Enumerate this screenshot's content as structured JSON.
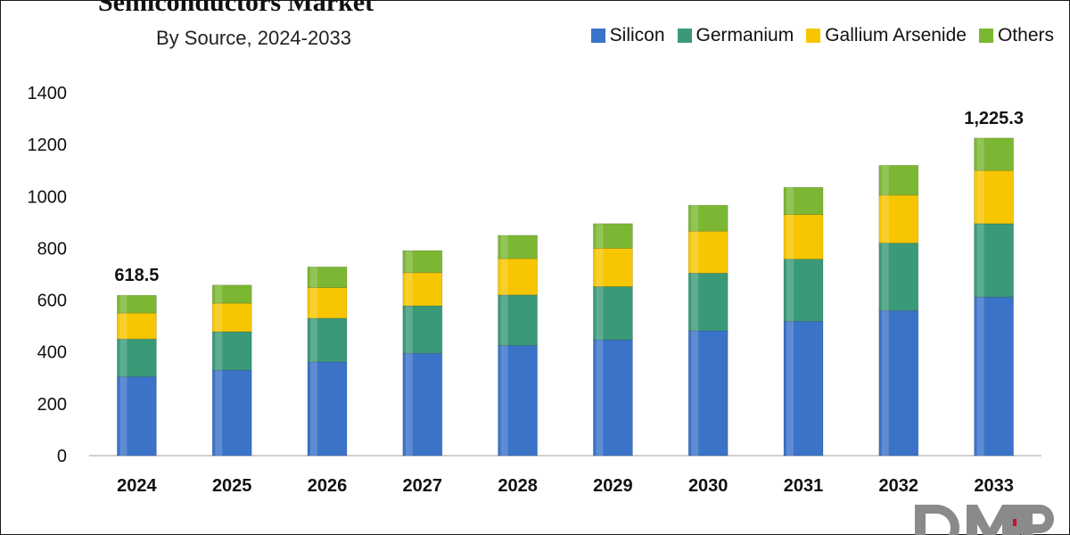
{
  "chart_data": {
    "type": "bar",
    "stacked": true,
    "title": "Semiconductors Market",
    "subtitle": "By Source, 2024-2033",
    "xlabel": "",
    "ylabel": "",
    "ylim": [
      0,
      1400
    ],
    "yticks": [
      0,
      200,
      400,
      600,
      800,
      1000,
      1200,
      1400
    ],
    "grid": false,
    "legend_position": "top-right",
    "categories": [
      "2024",
      "2025",
      "2026",
      "2027",
      "2028",
      "2029",
      "2030",
      "2031",
      "2032",
      "2033"
    ],
    "series": [
      {
        "name": "Silicon",
        "color": "#3B73C8",
        "values": [
          305,
          330,
          362,
          395,
          425,
          447,
          482,
          518,
          560,
          612
        ]
      },
      {
        "name": "Germanium",
        "color": "#3A9A78",
        "values": [
          145,
          148,
          168,
          183,
          195,
          205,
          222,
          240,
          260,
          283
        ]
      },
      {
        "name": "Gallium Arsenide",
        "color": "#F7C600",
        "values": [
          100,
          110,
          118,
          128,
          140,
          148,
          162,
          172,
          185,
          205
        ]
      },
      {
        "name": "Others",
        "color": "#7CB733",
        "values": [
          68.5,
          70,
          80,
          85,
          90,
          95,
          100,
          105,
          115,
          125.3
        ]
      }
    ],
    "annotations": [
      {
        "category": "2024",
        "label": "618.5"
      },
      {
        "category": "2033",
        "label": "1,225.3"
      }
    ]
  },
  "logo": {
    "text": "DMR",
    "color": "#8a8a8a",
    "accent": "#c8102e"
  }
}
